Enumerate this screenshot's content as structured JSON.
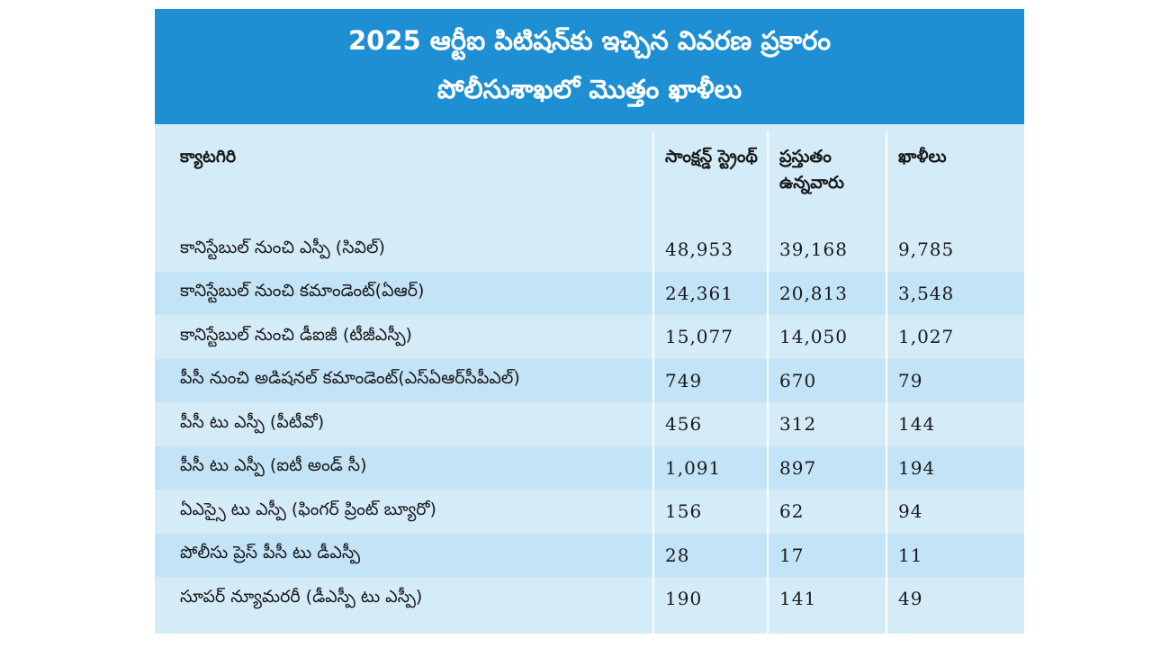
{
  "header": {
    "line1": "2025 ఆర్టీఐ పిటిషన్‌కు ఇచ్చిన వివరణ ప్రకారం",
    "line2": "పోలీసుశాఖలో మొత్తం ఖాళీలు"
  },
  "columns": [
    "క్యాటగిరి",
    "సాంక్షన్డ్ స్ట్రెంథ్",
    "ప్రస్తుతం ఉన్నవారు",
    "ఖాళీలు"
  ],
  "rows": [
    {
      "category": "కానిస్టేబుల్ నుంచి ఎస్పీ (సివిల్)",
      "sanctioned": "48,953",
      "current": "39,168",
      "vacancies": "9,785"
    },
    {
      "category": "కానిస్టేబుల్ నుంచి కమాండెంట్(ఏఆర్)",
      "sanctioned": "24,361",
      "current": "20,813",
      "vacancies": "3,548"
    },
    {
      "category": "కానిస్టేబుల్ నుంచి డీఐజీ (టీజీఎస్పీ)",
      "sanctioned": "15,077",
      "current": "14,050",
      "vacancies": "1,027"
    },
    {
      "category": "పీసీ నుంచి అడిషనల్ కమాండెంట్(ఎస్ఏఆర్‌సీపీఎల్)",
      "sanctioned": "749",
      "current": "670",
      "vacancies": "79"
    },
    {
      "category": "పీసీ టు ఎస్పీ (పీటీవో)",
      "sanctioned": "456",
      "current": "312",
      "vacancies": "144"
    },
    {
      "category": "పీసీ టు ఎస్పీ (ఐటీ అండ్ సీ)",
      "sanctioned": "1,091",
      "current": "897",
      "vacancies": "194"
    },
    {
      "category": "ఏఎస్సై టు ఎస్పీ (ఫింగర్ ప్రింట్ బ్యూరో)",
      "sanctioned": "156",
      "current": "62",
      "vacancies": "94"
    },
    {
      "category": "పోలీసు ప్రెస్ పీసీ టు డీఎస్పీ",
      "sanctioned": "28",
      "current": "17",
      "vacancies": "11"
    },
    {
      "category": "సూపర్ న్యూమరరీ (డీఎస్పీ టు ఎస్పీ)",
      "sanctioned": "190",
      "current": "141",
      "vacancies": "49"
    }
  ],
  "colors": {
    "header_bg": "#1e8fd3",
    "table_bg": "#d4ebf8",
    "row_alt": "#c3e3f6"
  }
}
